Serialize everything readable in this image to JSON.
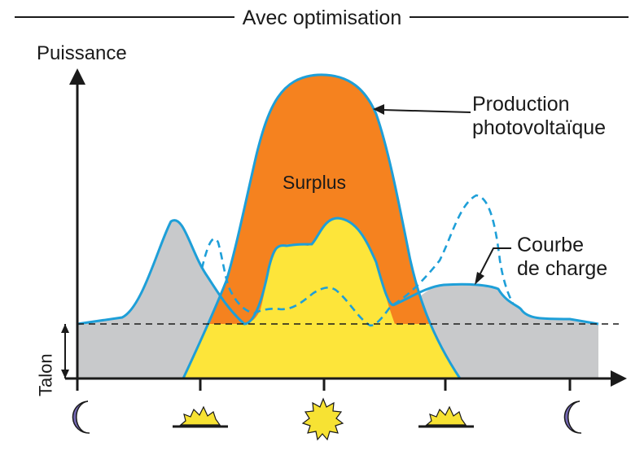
{
  "title": "Avec optimisation",
  "y_axis_label": "Puissance",
  "baseline_label": "Talon",
  "labels": {
    "surplus": "Surplus",
    "production_line1": "Production",
    "production_line2": "photovoltaïque",
    "load_line1": "Courbe",
    "load_line2": "de charge"
  },
  "colors": {
    "baseload": "#c8c9cb",
    "self_consumption": "#fde53a",
    "surplus": "#f5821f",
    "curve": "#1e9fd8",
    "axis": "#1a1a1a",
    "moon": "#7468b3",
    "sun": "#f7e233"
  },
  "time_icons": [
    "moon-icon",
    "sunrise-icon",
    "sun-icon",
    "sunset-icon",
    "moon-icon"
  ]
}
